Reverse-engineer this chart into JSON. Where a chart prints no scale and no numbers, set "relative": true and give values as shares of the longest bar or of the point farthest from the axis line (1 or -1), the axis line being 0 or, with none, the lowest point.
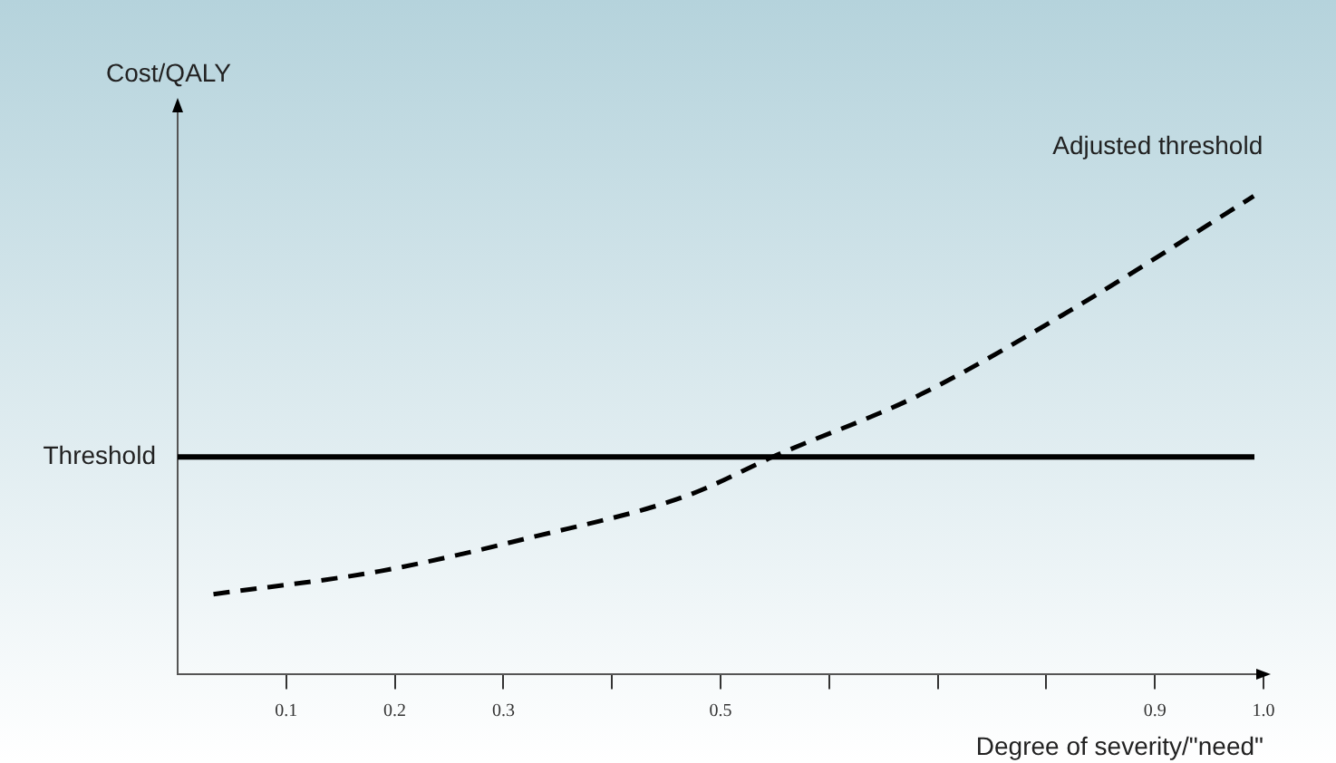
{
  "chart_data": {
    "type": "line",
    "ylabel": "Cost/QALY",
    "xlabel": "Degree of severity/\"need\"",
    "relative": true,
    "xlim": [
      0,
      1
    ],
    "xticks": [
      0.1,
      0.2,
      0.3,
      {
        "value": 0.4,
        "label": null
      },
      0.5,
      {
        "value": 0.6,
        "label": null
      },
      {
        "value": 0.7,
        "label": null
      },
      {
        "value": 0.8,
        "label": null
      },
      0.9,
      {
        "value": 1,
        "label": "1.0"
      }
    ],
    "series": [
      {
        "name": "Adjusted threshold",
        "color": "#000000",
        "line_style": "dashed",
        "x": [
          0.033,
          0.186,
          0.326,
          0.468,
          0.552,
          0.681,
          0.822,
          0.991
        ],
        "values": [
          0.168,
          0.216,
          0.287,
          0.373,
          0.459,
          0.582,
          0.761,
          1
        ]
      }
    ],
    "ref_lines": [
      {
        "axis": "y",
        "value": 0.455,
        "label": "Threshold",
        "color": "#000000"
      }
    ],
    "grid": false,
    "marker": "none",
    "legend": false
  }
}
